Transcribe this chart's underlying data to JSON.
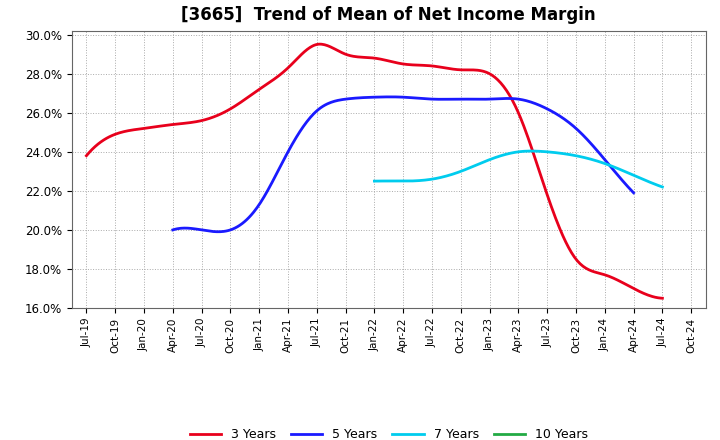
{
  "title": "[3665]  Trend of Mean of Net Income Margin",
  "ylim": [
    0.16,
    0.302
  ],
  "yticks": [
    0.16,
    0.18,
    0.2,
    0.22,
    0.24,
    0.26,
    0.28,
    0.3
  ],
  "ytick_labels": [
    "16.0%",
    "18.0%",
    "20.0%",
    "22.0%",
    "24.0%",
    "26.0%",
    "28.0%",
    "30.0%"
  ],
  "x_labels": [
    "Jul-19",
    "Oct-19",
    "Jan-20",
    "Apr-20",
    "Jul-20",
    "Oct-20",
    "Jan-21",
    "Apr-21",
    "Jul-21",
    "Oct-21",
    "Jan-22",
    "Apr-22",
    "Jul-22",
    "Oct-22",
    "Jan-23",
    "Apr-23",
    "Jul-23",
    "Oct-23",
    "Jan-24",
    "Apr-24",
    "Jul-24",
    "Oct-24"
  ],
  "three_year_x": [
    0,
    1,
    2,
    3,
    4,
    5,
    6,
    7,
    8,
    9,
    10,
    11,
    12,
    13,
    14,
    15,
    16,
    17,
    18,
    19,
    20
  ],
  "three_year_y": [
    0.238,
    0.249,
    0.252,
    0.254,
    0.256,
    0.262,
    0.272,
    0.283,
    0.295,
    0.29,
    0.288,
    0.285,
    0.284,
    0.282,
    0.28,
    0.26,
    0.218,
    0.185,
    0.177,
    0.17,
    0.165
  ],
  "five_year_x": [
    3,
    4,
    5,
    6,
    7,
    8,
    9,
    10,
    11,
    12,
    13,
    14,
    15,
    16,
    17,
    18,
    19
  ],
  "five_year_y": [
    0.2,
    0.2,
    0.2,
    0.213,
    0.24,
    0.261,
    0.267,
    0.268,
    0.268,
    0.267,
    0.267,
    0.267,
    0.267,
    0.262,
    0.252,
    0.236,
    0.219
  ],
  "seven_year_x": [
    10,
    11,
    12,
    13,
    14,
    15,
    16,
    17,
    18,
    19,
    20
  ],
  "seven_year_y": [
    0.225,
    0.225,
    0.226,
    0.23,
    0.236,
    0.24,
    0.24,
    0.238,
    0.234,
    0.228,
    0.222
  ],
  "legend_entries": [
    "3 Years",
    "5 Years",
    "7 Years",
    "10 Years"
  ],
  "legend_colors": [
    "#e8001c",
    "#1a1aff",
    "#00ccee",
    "#22aa44"
  ],
  "background_color": "#ffffff",
  "grid_color": "#aaaaaa",
  "title_fontsize": 12
}
